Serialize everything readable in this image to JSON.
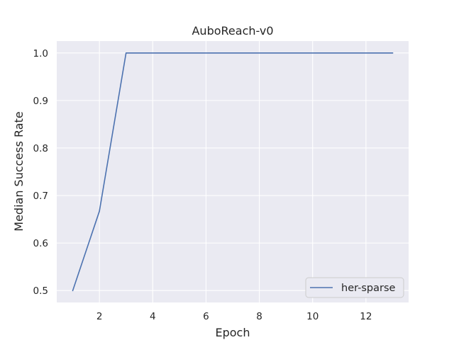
{
  "chart_data": {
    "type": "line",
    "title": "AuboReach-v0",
    "xlabel": "Epoch",
    "ylabel": "Median Success Rate",
    "xlim": [
      0.4,
      13.6
    ],
    "ylim": [
      0.475,
      1.025
    ],
    "xticks": [
      2,
      4,
      6,
      8,
      10,
      12
    ],
    "yticks": [
      0.5,
      0.6,
      0.7,
      0.8,
      0.9,
      1.0
    ],
    "ytick_labels": [
      "0.5",
      "0.6",
      "0.7",
      "0.8",
      "0.9",
      "1.0"
    ],
    "grid": true,
    "legend_position": "lower-right",
    "series": [
      {
        "name": "her-sparse",
        "color": "#4c72b0",
        "x": [
          1,
          2,
          3,
          4,
          5,
          6,
          7,
          8,
          9,
          10,
          11,
          12,
          13
        ],
        "y": [
          0.5,
          0.667,
          1.0,
          1.0,
          1.0,
          1.0,
          1.0,
          1.0,
          1.0,
          1.0,
          1.0,
          1.0,
          1.0
        ]
      }
    ]
  }
}
